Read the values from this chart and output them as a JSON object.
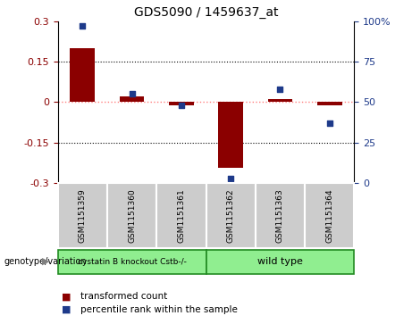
{
  "title": "GDS5090 / 1459637_at",
  "samples": [
    "GSM1151359",
    "GSM1151360",
    "GSM1151361",
    "GSM1151362",
    "GSM1151363",
    "GSM1151364"
  ],
  "transformed_count": [
    0.2,
    0.02,
    -0.012,
    -0.245,
    0.01,
    -0.012
  ],
  "percentile_rank": [
    97,
    55,
    48,
    3,
    58,
    37
  ],
  "ylim_left": [
    -0.3,
    0.3
  ],
  "ylim_right": [
    0,
    100
  ],
  "yticks_left": [
    -0.3,
    -0.15,
    0.0,
    0.15,
    0.3
  ],
  "yticks_right": [
    0,
    25,
    50,
    75,
    100
  ],
  "group1_label": "cystatin B knockout Cstb-/-",
  "group2_label": "wild type",
  "group1_indices": [
    0,
    1,
    2
  ],
  "group2_indices": [
    3,
    4,
    5
  ],
  "sample_box_color": "#cccccc",
  "group_box_color": "#90EE90",
  "group_border_color": "#228B22",
  "bar_color": "#8B0000",
  "dot_color": "#1E3A8A",
  "zero_line_color": "#FF8080",
  "grid_color": "#000000",
  "legend_bar_label": "transformed count",
  "legend_dot_label": "percentile rank within the sample",
  "genotype_label": "genotype/variation",
  "fig_bg": "#ffffff",
  "bar_width": 0.5,
  "dot_size": 20
}
